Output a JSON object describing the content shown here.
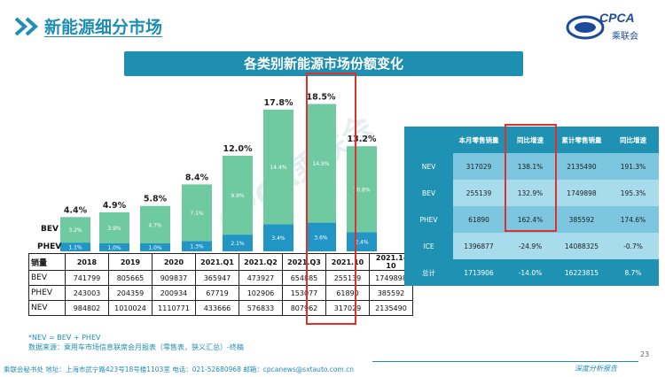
{
  "header": {
    "title": "新能源细分市场",
    "logo_text": "CPCA",
    "logo_sub": "乘联会"
  },
  "banner": {
    "title": "各类别新能源市场份额变化"
  },
  "chart_data": {
    "type": "bar",
    "stacked": true,
    "categories": [
      "2018",
      "2019",
      "2020",
      "2021.Q1",
      "2021.Q2",
      "2021.Q3",
      "2021.10",
      "2021.1-10"
    ],
    "series": [
      {
        "name": "PHEV",
        "values": [
          1.1,
          1.0,
          1.0,
          1.3,
          2.1,
          3.4,
          3.6,
          2.4
        ],
        "labels": [
          "1.1%",
          "1.0%",
          "1.0%",
          "1.3%",
          "2.1%",
          "3.4%",
          "3.6%",
          "2.4%"
        ],
        "color": "#2196c4"
      },
      {
        "name": "BEV",
        "values": [
          3.2,
          3.9,
          4.7,
          7.1,
          9.9,
          14.4,
          14.9,
          10.8
        ],
        "labels": [
          "3.2%",
          "3.9%",
          "4.7%",
          "7.1%",
          "9.9%",
          "14.4%",
          "14.9%",
          "10.8%"
        ],
        "color": "#6fc9a1"
      }
    ],
    "totals": [
      "4.4%",
      "4.9%",
      "5.8%",
      "8.4%",
      "12.0%",
      "17.8%",
      "18.5%",
      "13.2%"
    ],
    "total_values": [
      4.4,
      4.9,
      5.8,
      8.4,
      12.0,
      17.8,
      18.5,
      13.2
    ],
    "legend_labels": [
      "BEV",
      "PHEV"
    ],
    "ylim": [
      0,
      20
    ]
  },
  "sales_table": {
    "header": [
      "销量",
      "2018",
      "2019",
      "2020",
      "2021.Q1",
      "2021.Q2",
      "2021.Q3",
      "2021.10",
      "2021.1-10"
    ],
    "rows": [
      [
        "BEV",
        "741799",
        "805665",
        "909837",
        "365947",
        "473927",
        "654885",
        "255139",
        "1749898"
      ],
      [
        "PHEV",
        "243003",
        "204359",
        "200934",
        "67719",
        "102906",
        "153077",
        "61890",
        "385592"
      ],
      [
        "NEV",
        "984802",
        "1010024",
        "1110771",
        "433666",
        "576833",
        "807962",
        "317029",
        "2135490"
      ]
    ]
  },
  "right_table": {
    "header": [
      "",
      "本月零售销量",
      "同比增速",
      "累计零售销量",
      "同比增速"
    ],
    "rows": [
      [
        "NEV",
        "317029",
        "138.1%",
        "2135490",
        "191.3%"
      ],
      [
        "BEV",
        "255139",
        "132.9%",
        "1749898",
        "195.3%"
      ],
      [
        "PHEV",
        "61890",
        "162.4%",
        "385592",
        "174.6%"
      ],
      [
        "ICE",
        "1396877",
        "-24.9%",
        "14088325",
        "-0.7%"
      ],
      [
        "总计",
        "1713906",
        "-14.0%",
        "16223815",
        "8.7%"
      ]
    ]
  },
  "notes": {
    "line1": "*NEV = BEV + PHEV",
    "line2": "数据来源：乘用车市场信息联席会月报表（零售表，狭义汇总）-终稿"
  },
  "footer": {
    "contact": "乘联会秘书处  地址：上海市武宁路423号18号楼1103室  电话：021-52680968  邮箱：cpcanews@sxtauto.com.cn",
    "tagline": "深度分析报告",
    "page": "23"
  },
  "watermark": "CPCA乘联会",
  "colors": {
    "accent": "#1f8db4",
    "bev": "#6fc9a1",
    "phev": "#2196c4",
    "highlight": "#e0302c"
  }
}
